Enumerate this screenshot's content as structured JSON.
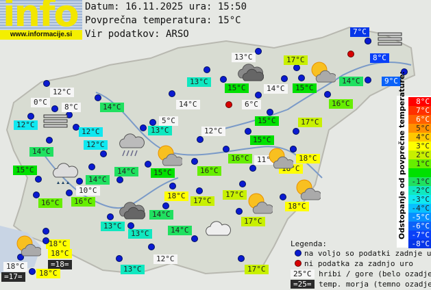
{
  "logo": {
    "word": "info",
    "url": "www.informacije.si"
  },
  "header": {
    "date_line": "Datum: 16.11.2025 ura: 15:50",
    "avg_line": "Povprečna temperatura: 15°C",
    "source_line": "Vir podatkov: ARSO"
  },
  "colors": {
    "dot_ok": "#0a1ad0",
    "dot_missing": "#d80000",
    "mountain_bg": "#f6f6f6",
    "sea_bg": "#2a2a2a"
  },
  "stations": [
    {
      "t": "7°C",
      "bg": "#0636e8",
      "fg": "#fff",
      "dot": "ok"
    },
    {
      "t": "13°C",
      "bg": "#f6f6f6",
      "dot": "ok"
    },
    {
      "t": "17°C",
      "bg": "#c8f000",
      "dot": "ok"
    },
    {
      "t": "8°C",
      "bg": "#0a40f8",
      "fg": "#fff",
      "dot": "ok"
    },
    {
      "t": "9°C",
      "bg": "#0b62f8",
      "fg": "#fff",
      "dot": "ok"
    },
    {
      "t": "13°C",
      "bg": "#10e8c0",
      "dot": "ok"
    },
    {
      "t": "15°C",
      "bg": "#00e000",
      "dot": "ok"
    },
    {
      "t": "14°C",
      "bg": "#f6f6f6",
      "dot": "ok"
    },
    {
      "t": "15°C",
      "bg": "#00e000",
      "dot": "ok"
    },
    {
      "t": "14°C",
      "bg": "#20e060",
      "dot": "ok"
    },
    {
      "t": "16°C",
      "bg": "#66ee00",
      "dot": "ok"
    },
    {
      "t": "12°C",
      "bg": "#f6f6f6",
      "dot": "ok"
    },
    {
      "t": "0°C",
      "bg": "#f6f6f6",
      "dot": "ok"
    },
    {
      "t": "8°C",
      "bg": "#f6f6f6",
      "dot": "ok"
    },
    {
      "t": "14°C",
      "bg": "#20e060",
      "dot": "ok"
    },
    {
      "t": "14°C",
      "bg": "#f6f6f6",
      "dot": "ok"
    },
    {
      "t": "6°C",
      "bg": "#f6f6f6",
      "dot": "ok"
    },
    {
      "t": "12°C",
      "bg": "#10e8f0",
      "dot": "ok"
    },
    {
      "t": "12°C",
      "bg": "#10e8f0",
      "dot": "ok"
    },
    {
      "t": "5°C",
      "bg": "#f6f6f6",
      "dot": "ok"
    },
    {
      "t": "13°C",
      "bg": "#10e8c0",
      "dot": "ok"
    },
    {
      "t": "15°C",
      "bg": "#00e000",
      "dot": "ok"
    },
    {
      "t": "17°C",
      "bg": "#c8f000",
      "dot": "ok"
    },
    {
      "t": "12°C",
      "bg": "#f6f6f6",
      "dot": "ok"
    },
    {
      "t": "12°C",
      "bg": "#10e8f0",
      "dot": "ok"
    },
    {
      "t": "14°C",
      "bg": "#20e060",
      "dot": "ok"
    },
    {
      "t": "15°C",
      "bg": "#00e000",
      "dot": "ok"
    },
    {
      "t": "16°C",
      "bg": "#66ee00",
      "dot": "ok"
    },
    {
      "t": "11°C",
      "bg": "#f6f6f6",
      "dot": "ok"
    },
    {
      "t": "18°C",
      "bg": "#ffff00",
      "dot": "ok"
    },
    {
      "t": "18°C",
      "bg": "#ffff00",
      "dot": "ok"
    },
    {
      "t": "15°C",
      "bg": "#00e000",
      "dot": "ok"
    },
    {
      "t": "14°C",
      "bg": "#20e060",
      "dot": "ok"
    },
    {
      "t": "15°C",
      "bg": "#00e000",
      "dot": "ok"
    },
    {
      "t": "16°C",
      "bg": "#66ee00",
      "dot": "ok"
    },
    {
      "t": "14°C",
      "bg": "#20e060",
      "dot": "ok"
    },
    {
      "t": "10°C",
      "bg": "#f6f6f6",
      "dot": "ok"
    },
    {
      "t": "16°C",
      "bg": "#66ee00",
      "dot": "ok"
    },
    {
      "t": "16°C",
      "bg": "#66ee00",
      "dot": "ok"
    },
    {
      "t": "18°C",
      "bg": "#ffff00",
      "dot": "ok"
    },
    {
      "t": "17°C",
      "bg": "#c8f000",
      "dot": "ok"
    },
    {
      "t": "17°C",
      "bg": "#c8f000",
      "dot": "ok"
    },
    {
      "t": "18°C",
      "bg": "#ffff00",
      "dot": "ok"
    },
    {
      "t": "14°C",
      "bg": "#20e060",
      "dot": "ok"
    },
    {
      "t": "17°C",
      "bg": "#c8f000",
      "dot": "ok"
    },
    {
      "t": "13°C",
      "bg": "#10e8c0",
      "dot": "ok"
    },
    {
      "t": "13°C",
      "bg": "#10e8c0",
      "dot": "ok"
    },
    {
      "t": "14°C",
      "bg": "#20e060",
      "dot": "ok"
    },
    {
      "t": "18°C",
      "bg": "#ffff00",
      "dot": "ok"
    },
    {
      "t": "18°C",
      "bg": "#ffff00",
      "dot": "ok"
    },
    {
      "t": "=18=",
      "bg": "#2a2a2a",
      "fg": "#fff",
      "dot": "none"
    },
    {
      "t": "18°C",
      "bg": "#f6f6f6",
      "dot": "ok"
    },
    {
      "t": "=17=",
      "bg": "#2a2a2a",
      "fg": "#fff",
      "dot": "none"
    },
    {
      "t": "18°C",
      "bg": "#ffff00",
      "dot": "ok"
    },
    {
      "t": "13°C",
      "bg": "#10e8c0",
      "dot": "ok"
    },
    {
      "t": "12°C",
      "bg": "#f6f6f6",
      "dot": "ok"
    },
    {
      "t": "17°C",
      "bg": "#c8f000",
      "dot": "ok"
    }
  ],
  "missing_stations": [
    "missing-1",
    "missing-2"
  ],
  "weather_icons": [
    "fog",
    "overcast",
    "partly-cloudy",
    "fog",
    "rain",
    "partly-cloudy",
    "partly-cloudy",
    "rain-cloud",
    "partly-cloudy",
    "partly-cloudy",
    "overcast",
    "cloud",
    "partly-cloudy"
  ],
  "scale": {
    "title": "Odstopanje od povprečne temperature:",
    "cells": [
      {
        "label": "8°C",
        "color": "#ff0000",
        "fg": "#fff"
      },
      {
        "label": "7°C",
        "color": "#ff3000",
        "fg": "#fff"
      },
      {
        "label": "6°C",
        "color": "#ff6000",
        "fg": "#fff"
      },
      {
        "label": "5°C",
        "color": "#ff9000",
        "fg": "#222"
      },
      {
        "label": "4°C",
        "color": "#ffc800",
        "fg": "#222"
      },
      {
        "label": "3°C",
        "color": "#ffff00",
        "fg": "#222"
      },
      {
        "label": "2°C",
        "color": "#c8f000",
        "fg": "#222"
      },
      {
        "label": "1°C",
        "color": "#66ee00",
        "fg": "#222"
      },
      {
        "label": "",
        "color": "#00e000",
        "fg": "#222"
      },
      {
        "label": "-1°C",
        "color": "#20e060",
        "fg": "#222"
      },
      {
        "label": "-2°C",
        "color": "#10e8c0",
        "fg": "#222"
      },
      {
        "label": "-3°C",
        "color": "#10e8f0",
        "fg": "#222"
      },
      {
        "label": "-4°C",
        "color": "#08c0ff",
        "fg": "#222"
      },
      {
        "label": "-5°C",
        "color": "#0890ff",
        "fg": "#fff"
      },
      {
        "label": "-6°C",
        "color": "#0b62f8",
        "fg": "#fff"
      },
      {
        "label": "-7°C",
        "color": "#0a40f8",
        "fg": "#fff"
      },
      {
        "label": "-8°C",
        "color": "#0636e8",
        "fg": "#fff"
      }
    ]
  },
  "legend": {
    "title": "Legenda:",
    "ok": "na voljo so podatki zadnje ure",
    "missing": "ni podatka za zadnjo uro",
    "mountain_sample": "25°C",
    "mountain_text": "hribi / gore (belo ozadje)",
    "sea_sample": "=25=",
    "sea_text": "temp. morja (temno ozadje)"
  }
}
